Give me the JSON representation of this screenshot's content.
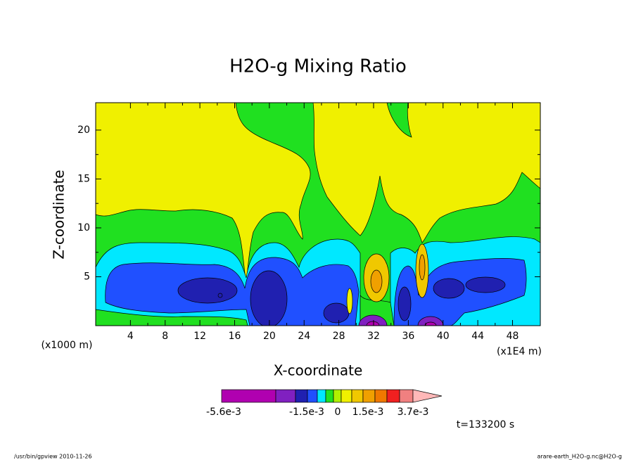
{
  "chart_data": {
    "type": "contour",
    "title": "H2O-g Mixing Ratio",
    "xlabel": "X-coordinate",
    "ylabel": "Z-coordinate",
    "x_unit": "(x1000 m)",
    "x_scale_note": "(x1E4 m)",
    "xlim": [
      0,
      51.2
    ],
    "xticks": [
      4,
      8,
      12,
      16,
      20,
      24,
      28,
      32,
      36,
      40,
      44,
      48
    ],
    "ylim": [
      0,
      22.8
    ],
    "yticks": [
      5,
      10,
      15,
      20
    ],
    "colorbar": {
      "colors": [
        "#b000b0",
        "#8020c0",
        "#2020b0",
        "#2050ff",
        "#00e8ff",
        "#20e020",
        "#b0f000",
        "#f0f000",
        "#f0c800",
        "#f0a000",
        "#f07800",
        "#f02020",
        "#f08080",
        "#ffb8b8"
      ],
      "labels": [
        "-5.6e-3",
        "-1.5e-3",
        "0",
        "1.5e-3",
        "3.7e-3"
      ]
    },
    "time_label": "t=133200 s",
    "footer_left": "/usr/bin/gpview  2010-11-26",
    "footer_right": "arare-earth_H2O-g.nc@H2O-g"
  }
}
